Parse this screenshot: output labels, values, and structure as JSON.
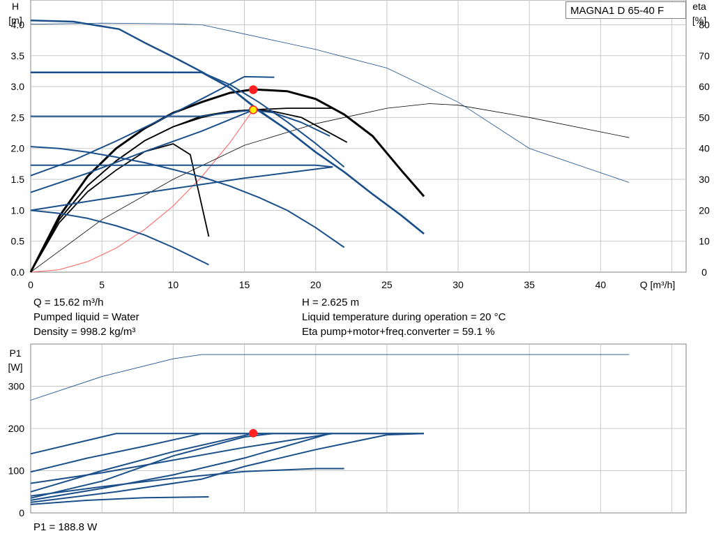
{
  "model_label": "MAGNA1 D 65-40 F",
  "info": {
    "flow": "Q = 15.62 m³/h",
    "liquid": "Pumped liquid = Water",
    "density": "Density = 998.2 kg/m³",
    "head": "H = 2.625 m",
    "temperature": "Liquid temperature during operation = 20 °C",
    "efficiency": "Eta pump+motor+freq.converter = 59.1 %",
    "power": "P1 = 188.8 W"
  },
  "colors": {
    "curve": "#1a4f8a",
    "eta": "#000000",
    "system": "#ff6060",
    "grid": "#c8c8c8",
    "duty_point": "#ff2020",
    "duty_point_yellow": "#ffee00"
  },
  "chart_data": [
    {
      "type": "line",
      "title": "",
      "xlabel": "Q [m³/h]",
      "ylabel": "H\n[m]",
      "y2label": "eta\n[%]",
      "xlim": [
        0,
        46
      ],
      "ylim": [
        0,
        4.4
      ],
      "y2lim": [
        0,
        88
      ],
      "xticks": [
        0,
        5,
        10,
        15,
        20,
        25,
        30,
        35,
        40
      ],
      "yticks": [
        0.0,
        0.5,
        1.0,
        1.5,
        2.0,
        2.5,
        3.0,
        3.5,
        4.0
      ],
      "yticklabels": [
        "0.0",
        "0.5",
        "1.0",
        "1.5",
        "2.0",
        "2.5",
        "3.0",
        "3.5",
        "4.0"
      ],
      "y2ticks": [
        0,
        10,
        20,
        30,
        40,
        50,
        60,
        70,
        80
      ],
      "grid": true,
      "head_curves": [
        {
          "style": "max",
          "x": [
            0,
            2,
            4,
            6,
            8,
            10,
            12,
            14,
            16,
            18,
            20,
            22,
            24,
            26,
            27.6
          ],
          "y": [
            3.23,
            3.23,
            3.23,
            3.23,
            3.23,
            3.23,
            3.23,
            2.98,
            2.62,
            2.3,
            1.94,
            1.62,
            1.26,
            0.92,
            0.62
          ]
        },
        {
          "style": "constant",
          "x": [
            0,
            12,
            14,
            16,
            18,
            20,
            22
          ],
          "y": [
            3.23,
            3.23,
            3.03,
            2.75,
            2.43,
            2.08,
            1.7
          ]
        },
        {
          "style": "constant",
          "x": [
            0,
            12,
            14,
            15.6,
            17,
            19,
            21
          ],
          "y": [
            2.52,
            2.52,
            2.58,
            2.62,
            2.58,
            2.42,
            2.2
          ]
        },
        {
          "style": "constant",
          "x": [
            0,
            12,
            14,
            16,
            18,
            20,
            21.2
          ],
          "y": [
            1.73,
            1.73,
            1.73,
            1.73,
            1.73,
            1.73,
            1.7
          ]
        },
        {
          "style": "proportional",
          "x": [
            0,
            3,
            6,
            9,
            12,
            15,
            17.1
          ],
          "y": [
            1.56,
            1.81,
            2.12,
            2.45,
            2.8,
            3.16,
            3.15
          ]
        },
        {
          "style": "proportional",
          "x": [
            0,
            4,
            8,
            12,
            15.6
          ],
          "y": [
            1.29,
            1.6,
            1.95,
            2.28,
            2.62
          ]
        },
        {
          "style": "proportional",
          "x": [
            0,
            5,
            10,
            15,
            21.2
          ],
          "y": [
            1.0,
            1.18,
            1.35,
            1.52,
            1.7
          ]
        },
        {
          "style": "max",
          "x": [
            0,
            3,
            6.2,
            8,
            10,
            12,
            14,
            16,
            18,
            20,
            22,
            24,
            26,
            27.6
          ],
          "y": [
            4.07,
            4.05,
            3.93,
            3.71,
            3.48,
            3.24,
            2.98,
            2.61,
            2.3,
            1.94,
            1.62,
            1.26,
            0.92,
            0.62
          ]
        },
        {
          "style": "min",
          "x": [
            0,
            2,
            4,
            6,
            8,
            10,
            12,
            14,
            16,
            18,
            20,
            22
          ],
          "y": [
            2.03,
            2.0,
            1.94,
            1.86,
            1.77,
            1.66,
            1.54,
            1.39,
            1.21,
            1.0,
            0.72,
            0.4
          ]
        },
        {
          "style": "min",
          "x": [
            0,
            2,
            4,
            6,
            8,
            10,
            12.5
          ],
          "y": [
            1.0,
            0.95,
            0.87,
            0.75,
            0.6,
            0.4,
            0.12
          ]
        }
      ],
      "eta_curves": [
        {
          "x": [
            0,
            2,
            4,
            6,
            8,
            10,
            12,
            14,
            15.62,
            17,
            19,
            21,
            22.2
          ],
          "y": [
            0,
            17,
            28,
            36,
            42.5,
            47,
            50.5,
            52,
            52.5,
            52,
            50,
            45,
            42
          ]
        },
        {
          "x": [
            0,
            2,
            4,
            6,
            8,
            10,
            12,
            14,
            15.62,
            18,
            21,
            21.2
          ],
          "y": [
            0,
            17,
            28,
            36,
            42.5,
            47,
            50,
            52,
            52.5,
            53,
            53,
            53
          ]
        },
        {
          "x": [
            0,
            2,
            4,
            6,
            8,
            10,
            12,
            14,
            15.62,
            18,
            20,
            22,
            24,
            26,
            27.6
          ],
          "y": [
            0,
            18,
            31,
            40,
            46.5,
            51.5,
            55,
            58,
            59.1,
            58.5,
            56,
            51,
            44,
            33,
            24.5
          ]
        },
        {
          "x": [
            0,
            2,
            4,
            6,
            8,
            10,
            11.2,
            12.5
          ],
          "y": [
            0,
            16,
            26,
            33,
            39,
            41.5,
            38,
            11.5
          ]
        },
        {
          "x": [
            0,
            5,
            10,
            15,
            20,
            25,
            28,
            30,
            35,
            42
          ],
          "y": [
            0,
            17,
            30,
            41,
            48,
            53,
            54.5,
            54,
            50,
            43.5
          ]
        },
        {
          "x": [
            0,
            5,
            10,
            12,
            14,
            18,
            20,
            25,
            30,
            35,
            42
          ],
          "y": [
            80.2,
            80.5,
            80.3,
            80,
            78,
            74,
            72,
            66,
            55,
            40,
            29
          ]
        }
      ],
      "system_curve": {
        "x": [
          0,
          2,
          4,
          6,
          8,
          10,
          12,
          14,
          15.62
        ],
        "y": [
          0,
          0.04,
          0.17,
          0.39,
          0.69,
          1.07,
          1.54,
          2.1,
          2.625
        ]
      },
      "duty_points": [
        {
          "x": 15.62,
          "y": 2.95,
          "color": "red"
        },
        {
          "x": 15.62,
          "y": 2.625,
          "color": "yellow"
        }
      ]
    },
    {
      "type": "line",
      "title": "",
      "xlabel": "",
      "ylabel": "P1\n[W]",
      "xlim": [
        0,
        46
      ],
      "ylim": [
        0,
        400
      ],
      "yticks": [
        0,
        100,
        200,
        300
      ],
      "grid": true,
      "power_curves": [
        {
          "x": [
            0,
            6,
            12,
            15.6,
            20,
            27.6
          ],
          "y": [
            140,
            188,
            188,
            188,
            188,
            188
          ]
        },
        {
          "x": [
            0,
            4,
            8,
            12,
            15.6,
            21.2,
            27.6
          ],
          "y": [
            97,
            130,
            158,
            188,
            188,
            188,
            188
          ]
        },
        {
          "x": [
            0,
            5,
            10,
            15.6
          ],
          "y": [
            50,
            100,
            145,
            188
          ]
        },
        {
          "x": [
            0,
            5,
            10,
            15,
            21.2
          ],
          "y": [
            70,
            95,
            125,
            155,
            188
          ]
        },
        {
          "x": [
            0,
            5,
            10,
            15,
            21
          ],
          "y": [
            30,
            58,
            90,
            130,
            188
          ]
        },
        {
          "x": [
            0,
            5,
            10,
            15,
            20,
            22
          ],
          "y": [
            40,
            62,
            82,
            98,
            105,
            105
          ]
        },
        {
          "x": [
            0,
            4,
            8,
            12.5
          ],
          "y": [
            20,
            30,
            36,
            38
          ]
        },
        {
          "x": [
            0,
            6,
            12,
            15,
            20,
            25,
            27.6
          ],
          "y": [
            25,
            50,
            80,
            110,
            150,
            185,
            188
          ]
        },
        {
          "x": [
            0,
            5,
            10,
            15,
            17
          ],
          "y": [
            35,
            75,
            135,
            180,
            188
          ]
        },
        {
          "x": [
            0,
            5,
            10,
            12,
            14,
            20,
            42
          ],
          "y": [
            267,
            323,
            365,
            375,
            375,
            375,
            375
          ]
        }
      ],
      "duty_points": [
        {
          "x": 15.62,
          "y": 188.8,
          "color": "red"
        }
      ]
    }
  ]
}
